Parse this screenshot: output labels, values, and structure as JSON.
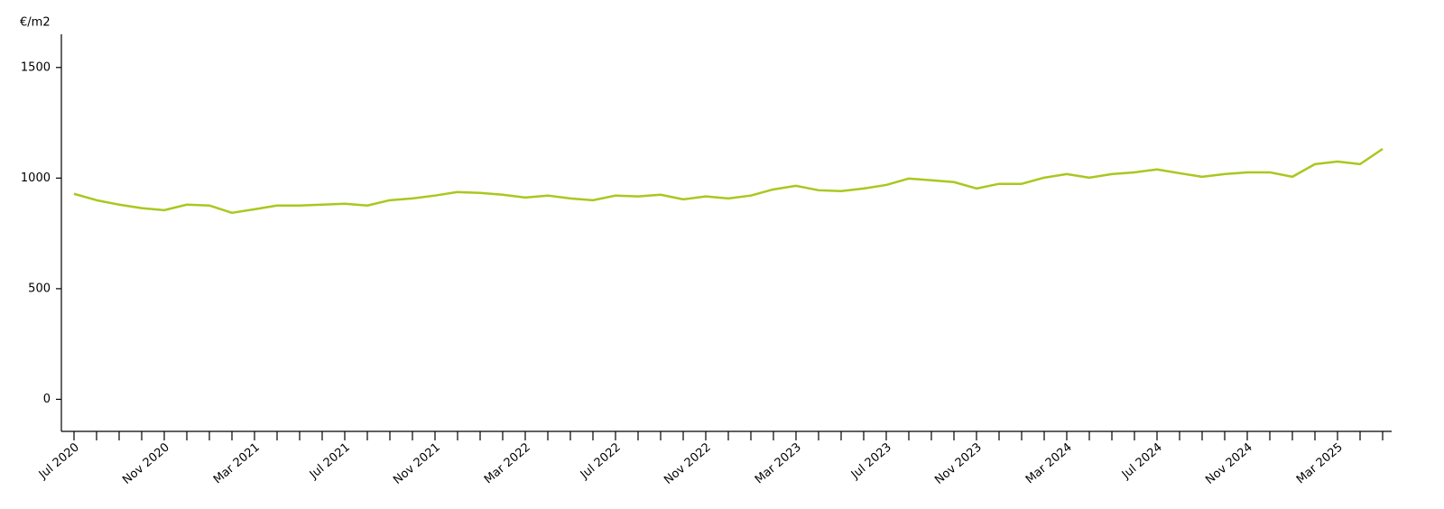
{
  "chart_data": {
    "type": "line",
    "y_axis_label": "€/m2",
    "categories": [
      "Jul 2020",
      null,
      null,
      null,
      "Nov 2020",
      null,
      null,
      null,
      "Mar 2021",
      null,
      null,
      null,
      "Jul 2021",
      null,
      null,
      null,
      "Nov 2021",
      null,
      null,
      null,
      "Mar 2022",
      null,
      null,
      null,
      "Jul 2022",
      null,
      null,
      null,
      "Nov 2022",
      null,
      null,
      null,
      "Mar 2023",
      null,
      null,
      null,
      "Jul 2023",
      null,
      null,
      null,
      "Nov 2023",
      null,
      null,
      null,
      "Mar 2024",
      null,
      null,
      null,
      "Jul 2024",
      null,
      null,
      null,
      "Nov 2024",
      null,
      null,
      null,
      "Mar 2025",
      null,
      null
    ],
    "series": [
      {
        "color": "#a8c81e",
        "values": [
          929,
          900,
          880,
          864,
          855,
          880,
          876,
          843,
          859,
          876,
          876,
          880,
          884,
          876,
          900,
          908,
          921,
          937,
          933,
          925,
          912,
          921,
          908,
          900,
          921,
          917,
          925,
          904,
          917,
          908,
          921,
          949,
          965,
          945,
          941,
          953,
          969,
          998,
          990,
          982,
          953,
          974,
          974,
          1002,
          1018,
          1002,
          1018,
          1026,
          1039,
          1022,
          1006,
          1018,
          1026,
          1026,
          1006,
          1063,
          1075,
          1063,
          1132
        ]
      }
    ],
    "ylim": [
      -145,
      1650
    ],
    "yticks": [
      0,
      500,
      1000,
      1500
    ],
    "grid": false
  }
}
